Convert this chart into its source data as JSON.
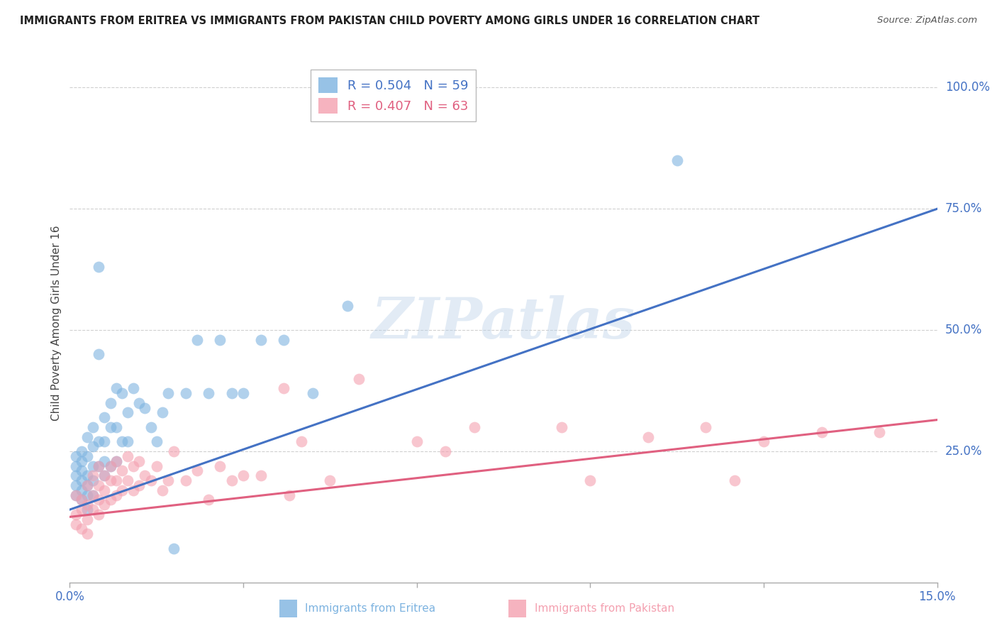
{
  "title": "IMMIGRANTS FROM ERITREA VS IMMIGRANTS FROM PAKISTAN CHILD POVERTY AMONG GIRLS UNDER 16 CORRELATION CHART",
  "source": "Source: ZipAtlas.com",
  "ylabel": "Child Poverty Among Girls Under 16",
  "xlim": [
    0.0,
    0.15
  ],
  "ylim": [
    -0.02,
    1.05
  ],
  "yticks_right": [
    0.25,
    0.5,
    0.75,
    1.0
  ],
  "ytick_labels_right": [
    "25.0%",
    "50.0%",
    "75.0%",
    "100.0%"
  ],
  "xticks": [
    0.0,
    0.03,
    0.06,
    0.09,
    0.12,
    0.15
  ],
  "xtick_labels": [
    "0.0%",
    "",
    "",
    "",
    "",
    "15.0%"
  ],
  "background_color": "#ffffff",
  "grid_color": "#d0d0d0",
  "watermark": "ZIPatlas",
  "blue_color": "#7db3e0",
  "pink_color": "#f4a0b0",
  "blue_line_color": "#4472c4",
  "pink_line_color": "#e06080",
  "legend_R_blue": "R = 0.504",
  "legend_N_blue": "N = 59",
  "legend_R_pink": "R = 0.407",
  "legend_N_pink": "N = 63",
  "blue_label": "Immigrants from Eritrea",
  "pink_label": "Immigrants from Pakistan",
  "blue_scatter_x": [
    0.001,
    0.001,
    0.001,
    0.001,
    0.001,
    0.002,
    0.002,
    0.002,
    0.002,
    0.002,
    0.002,
    0.003,
    0.003,
    0.003,
    0.003,
    0.003,
    0.003,
    0.004,
    0.004,
    0.004,
    0.004,
    0.004,
    0.005,
    0.005,
    0.005,
    0.005,
    0.006,
    0.006,
    0.006,
    0.006,
    0.007,
    0.007,
    0.007,
    0.008,
    0.008,
    0.008,
    0.009,
    0.009,
    0.01,
    0.01,
    0.011,
    0.012,
    0.013,
    0.014,
    0.015,
    0.016,
    0.017,
    0.018,
    0.02,
    0.022,
    0.024,
    0.026,
    0.028,
    0.03,
    0.033,
    0.037,
    0.042,
    0.048,
    0.105
  ],
  "blue_scatter_y": [
    0.2,
    0.24,
    0.18,
    0.22,
    0.16,
    0.25,
    0.23,
    0.19,
    0.21,
    0.17,
    0.15,
    0.28,
    0.24,
    0.2,
    0.18,
    0.16,
    0.13,
    0.3,
    0.26,
    0.22,
    0.19,
    0.16,
    0.63,
    0.45,
    0.27,
    0.22,
    0.32,
    0.27,
    0.23,
    0.2,
    0.35,
    0.3,
    0.22,
    0.38,
    0.3,
    0.23,
    0.37,
    0.27,
    0.33,
    0.27,
    0.38,
    0.35,
    0.34,
    0.3,
    0.27,
    0.33,
    0.37,
    0.05,
    0.37,
    0.48,
    0.37,
    0.48,
    0.37,
    0.37,
    0.48,
    0.48,
    0.37,
    0.55,
    0.85
  ],
  "pink_scatter_x": [
    0.001,
    0.001,
    0.001,
    0.002,
    0.002,
    0.002,
    0.003,
    0.003,
    0.003,
    0.003,
    0.004,
    0.004,
    0.004,
    0.005,
    0.005,
    0.005,
    0.005,
    0.006,
    0.006,
    0.006,
    0.007,
    0.007,
    0.007,
    0.008,
    0.008,
    0.008,
    0.009,
    0.009,
    0.01,
    0.01,
    0.011,
    0.011,
    0.012,
    0.012,
    0.013,
    0.014,
    0.015,
    0.016,
    0.017,
    0.018,
    0.02,
    0.022,
    0.024,
    0.026,
    0.028,
    0.03,
    0.033,
    0.037,
    0.038,
    0.04,
    0.045,
    0.05,
    0.06,
    0.065,
    0.07,
    0.085,
    0.09,
    0.1,
    0.11,
    0.115,
    0.12,
    0.13,
    0.14
  ],
  "pink_scatter_y": [
    0.12,
    0.16,
    0.1,
    0.15,
    0.13,
    0.09,
    0.18,
    0.14,
    0.11,
    0.08,
    0.2,
    0.16,
    0.13,
    0.22,
    0.18,
    0.15,
    0.12,
    0.2,
    0.17,
    0.14,
    0.22,
    0.19,
    0.15,
    0.23,
    0.19,
    0.16,
    0.21,
    0.17,
    0.24,
    0.19,
    0.22,
    0.17,
    0.23,
    0.18,
    0.2,
    0.19,
    0.22,
    0.17,
    0.19,
    0.25,
    0.19,
    0.21,
    0.15,
    0.22,
    0.19,
    0.2,
    0.2,
    0.38,
    0.16,
    0.27,
    0.19,
    0.4,
    0.27,
    0.25,
    0.3,
    0.3,
    0.19,
    0.28,
    0.3,
    0.19,
    0.27,
    0.29,
    0.29
  ],
  "blue_line_x": [
    0.0,
    0.15
  ],
  "blue_line_y": [
    0.13,
    0.75
  ],
  "pink_line_x": [
    0.0,
    0.15
  ],
  "pink_line_y": [
    0.115,
    0.315
  ]
}
